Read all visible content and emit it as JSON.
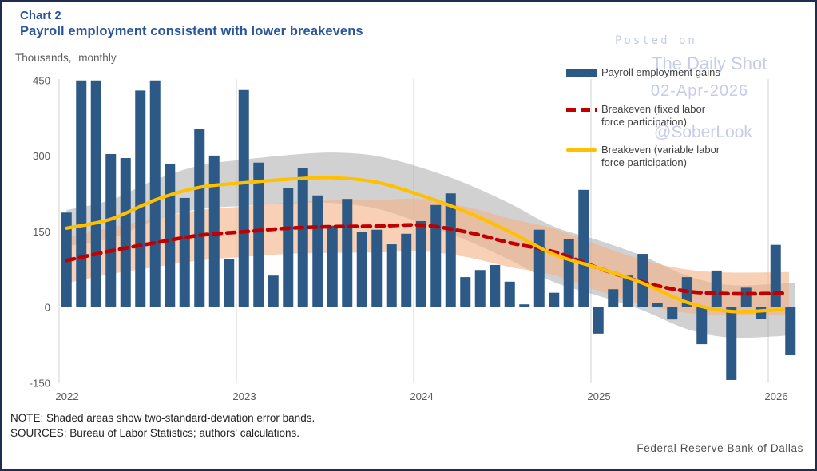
{
  "header": {
    "chart_label": "Chart 2",
    "title": "Payroll employment consistent with lower breakevens",
    "unit_label": "Thousands, monthly"
  },
  "legend": {
    "items": [
      {
        "swatch": "bar",
        "lines": [
          "Payroll employment gains",
          ""
        ]
      },
      {
        "swatch": "dashed-line",
        "lines": [
          "Breakeven (fixed labor",
          "force participation)"
        ]
      },
      {
        "swatch": "solid-line",
        "lines": [
          "Breakeven (variable labor",
          "force participation)"
        ]
      }
    ]
  },
  "watermark": {
    "line1": "Posted on",
    "line2": "The Daily Shot",
    "line3": "02-Apr-2026",
    "line4": "@SoberLook"
  },
  "footer": {
    "note": "NOTE: Shaded areas show two-standard-deviation error bands.",
    "sources": "SOURCES: Bureau of Labor Statistics; authors' calculations.",
    "attribution": "Federal Reserve Bank of Dallas"
  },
  "colors": {
    "bar": "#2C5985",
    "breakeven_fixed": "#C00000",
    "breakeven_variable": "#FFC000",
    "gray_band": "rgba(163,163,163,0.50)",
    "orange_band": "rgba(244,177,131,0.60)",
    "gridline": "#D9D9D9",
    "axis_text": "#595959",
    "title_text": "#2A5699",
    "watermark": "#C6CCE9",
    "frame_border": "#1E2D4F"
  },
  "chart_data": {
    "type": "bar",
    "title": "Payroll employment consistent with lower breakevens",
    "ylabel": "Thousands, monthly",
    "ylim": [
      -150,
      450
    ],
    "y_ticks": [
      450,
      300,
      150,
      0,
      -150
    ],
    "x_year_ticks": [
      "2022",
      "2023",
      "2024",
      "2025",
      "2026"
    ],
    "months_start": "2022-01",
    "months_end": "2026-02",
    "grid": "vertical-only",
    "legend_position": "top-right",
    "bar_series": {
      "name": "Payroll employment gains",
      "values": [
        188,
        450,
        450,
        304,
        296,
        430,
        450,
        285,
        217,
        353,
        301,
        95,
        431,
        287,
        63,
        236,
        276,
        222,
        162,
        215,
        150,
        154,
        125,
        146,
        171,
        203,
        226,
        60,
        74,
        84,
        51,
        6,
        154,
        29,
        135,
        233,
        -52,
        36,
        63,
        106,
        8,
        -24,
        60,
        -73,
        73,
        -144,
        39,
        -23,
        124,
        -95
      ]
    },
    "line_series": [
      {
        "name": "Breakeven (fixed labor force participation)",
        "style": "dashed",
        "color_key": "breakeven_fixed",
        "points": [
          [
            0,
            93
          ],
          [
            3,
            112
          ],
          [
            6,
            128
          ],
          [
            9,
            143
          ],
          [
            12,
            150
          ],
          [
            15,
            157
          ],
          [
            18,
            160
          ],
          [
            21,
            161
          ],
          [
            24,
            163
          ],
          [
            27,
            150
          ],
          [
            30,
            128
          ],
          [
            33,
            110
          ],
          [
            36,
            78
          ],
          [
            39,
            50
          ],
          [
            42,
            32
          ],
          [
            45,
            27
          ],
          [
            48.5,
            28
          ]
        ]
      },
      {
        "name": "Breakeven (variable labor force participation)",
        "style": "solid",
        "color_key": "breakeven_variable",
        "points": [
          [
            0,
            157
          ],
          [
            3,
            175
          ],
          [
            6,
            213
          ],
          [
            9,
            238
          ],
          [
            12,
            247
          ],
          [
            15,
            254
          ],
          [
            18,
            257
          ],
          [
            21,
            248
          ],
          [
            24,
            222
          ],
          [
            27,
            190
          ],
          [
            30,
            150
          ],
          [
            33,
            105
          ],
          [
            36,
            78
          ],
          [
            39,
            48
          ],
          [
            42,
            10
          ],
          [
            45,
            -8
          ],
          [
            48.5,
            -4
          ]
        ]
      }
    ],
    "error_bands": [
      {
        "name": "two-standard-deviation band (variable participation)",
        "color_key": "gray_band",
        "points": [
          [
            0,
            157,
            36
          ],
          [
            3,
            175,
            38
          ],
          [
            6,
            213,
            40
          ],
          [
            9,
            238,
            43
          ],
          [
            12,
            247,
            46
          ],
          [
            15,
            254,
            48
          ],
          [
            18,
            257,
            50
          ],
          [
            21,
            248,
            52
          ],
          [
            24,
            222,
            55
          ],
          [
            27,
            190,
            56
          ],
          [
            30,
            150,
            56
          ],
          [
            33,
            105,
            55
          ],
          [
            36,
            78,
            55
          ],
          [
            39,
            48,
            54
          ],
          [
            42,
            10,
            53
          ],
          [
            45,
            -8,
            52
          ],
          [
            49.3,
            -3,
            52
          ]
        ]
      },
      {
        "name": "two-standard-deviation band (fixed participation)",
        "color_key": "orange_band",
        "points": [
          [
            0,
            93,
            45
          ],
          [
            3,
            112,
            46
          ],
          [
            6,
            128,
            48
          ],
          [
            9,
            143,
            50
          ],
          [
            12,
            150,
            50
          ],
          [
            15,
            157,
            51
          ],
          [
            18,
            160,
            52
          ],
          [
            21,
            161,
            52
          ],
          [
            24,
            163,
            52
          ],
          [
            27,
            150,
            50
          ],
          [
            30,
            128,
            48
          ],
          [
            33,
            110,
            46
          ],
          [
            36,
            78,
            45
          ],
          [
            39,
            50,
            44
          ],
          [
            42,
            32,
            43
          ],
          [
            45,
            27,
            42
          ],
          [
            48.9,
            28,
            42
          ]
        ]
      }
    ]
  }
}
